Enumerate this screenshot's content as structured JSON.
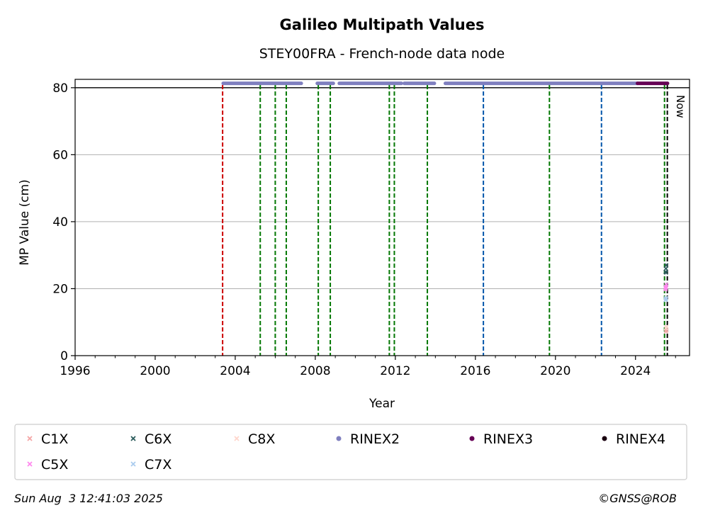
{
  "chart_data": {
    "type": "scatter",
    "title": "Galileo Multipath Values",
    "subtitle": "STEY00FRA - French-node data node",
    "xlabel": "Year",
    "ylabel": "MP Value (cm)",
    "xlim": [
      1996,
      2026.7
    ],
    "ylim": [
      0,
      82.5
    ],
    "x_ticks": [
      1996,
      2000,
      2004,
      2008,
      2012,
      2016,
      2020,
      2024
    ],
    "y_ticks": [
      0,
      20,
      40,
      60,
      80
    ],
    "grid": "y-major",
    "reference_line_y": 80,
    "now_label": "Now",
    "now_x": 2025.59,
    "vlines": [
      {
        "x": 2003.37,
        "color": "#cc0000"
      },
      {
        "x": 2005.25,
        "color": "#007700"
      },
      {
        "x": 2006.0,
        "color": "#007700"
      },
      {
        "x": 2006.55,
        "color": "#007700"
      },
      {
        "x": 2008.15,
        "color": "#007700"
      },
      {
        "x": 2008.75,
        "color": "#007700"
      },
      {
        "x": 2011.7,
        "color": "#007700"
      },
      {
        "x": 2011.95,
        "color": "#007700"
      },
      {
        "x": 2013.6,
        "color": "#007700"
      },
      {
        "x": 2016.4,
        "color": "#0055aa"
      },
      {
        "x": 2019.7,
        "color": "#007700"
      },
      {
        "x": 2022.3,
        "color": "#0055aa"
      },
      {
        "x": 2025.45,
        "color": "#007700"
      }
    ],
    "series": [
      {
        "name": "C1X",
        "marker": "x",
        "color": "#f4a6a6",
        "points": [
          [
            2025.52,
            7.2
          ],
          [
            2025.55,
            7.6
          ]
        ]
      },
      {
        "name": "C6X",
        "marker": "x",
        "color": "#2a5a5a",
        "points": [
          [
            2025.5,
            25.0
          ],
          [
            2025.52,
            26.0
          ],
          [
            2025.54,
            27.0
          ],
          [
            2025.53,
            24.8
          ]
        ]
      },
      {
        "name": "C8X",
        "marker": "x",
        "color": "#ffd6cc",
        "points": [
          [
            2025.52,
            8.2
          ],
          [
            2025.55,
            8.6
          ]
        ]
      },
      {
        "name": "RINEX2",
        "marker": "o",
        "color": "#7f7fbf",
        "segments": [
          [
            2003.4,
            2007.3
          ],
          [
            2008.1,
            2008.9
          ],
          [
            2009.2,
            2011.75
          ],
          [
            2011.8,
            2012.3
          ],
          [
            2012.45,
            2013.95
          ],
          [
            2014.5,
            2024.1
          ]
        ],
        "y": 81.3
      },
      {
        "name": "RINEX3",
        "marker": "o",
        "color": "#660055",
        "segments": [
          [
            2024.1,
            2025.6
          ]
        ],
        "y": 81.3
      },
      {
        "name": "RINEX4",
        "marker": "o",
        "color": "#1a0010",
        "segments": [],
        "y": 81.3
      },
      {
        "name": "C5X",
        "marker": "x",
        "color": "#ff88ee",
        "points": [
          [
            2025.5,
            19.8
          ],
          [
            2025.52,
            20.6
          ],
          [
            2025.54,
            21.2
          ],
          [
            2025.51,
            20.2
          ]
        ]
      },
      {
        "name": "C7X",
        "marker": "x",
        "color": "#aaccee",
        "points": [
          [
            2025.5,
            16.6
          ],
          [
            2025.53,
            17.2
          ],
          [
            2025.52,
            16.9
          ]
        ]
      }
    ]
  },
  "footer": {
    "timestamp": "Sun Aug  3 12:41:03 2025",
    "credit": "©GNSS@ROB"
  }
}
